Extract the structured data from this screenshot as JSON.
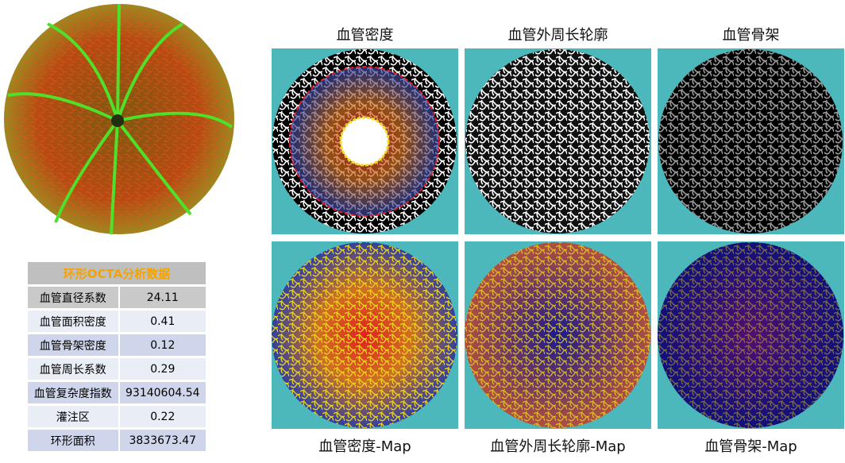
{
  "panels": {
    "top": [
      "血管密度",
      "血管外周长轮廓",
      "血管骨架"
    ],
    "bottom": [
      "血管密度-Map",
      "血管外周长轮廓-Map",
      "血管骨架-Map"
    ]
  },
  "table": {
    "title": "环形OCTA分析数据",
    "rows": [
      [
        "血管直径系数",
        "24.11"
      ],
      [
        "血管面积密度",
        "0.41"
      ],
      [
        "血管骨架密度",
        "0.12"
      ],
      [
        "血管周长系数",
        "0.29"
      ],
      [
        "血管复杂度指数",
        "93140604.54"
      ],
      [
        "灌注区",
        "0.22"
      ],
      [
        "环形面积",
        "3833673.47"
      ]
    ]
  }
}
